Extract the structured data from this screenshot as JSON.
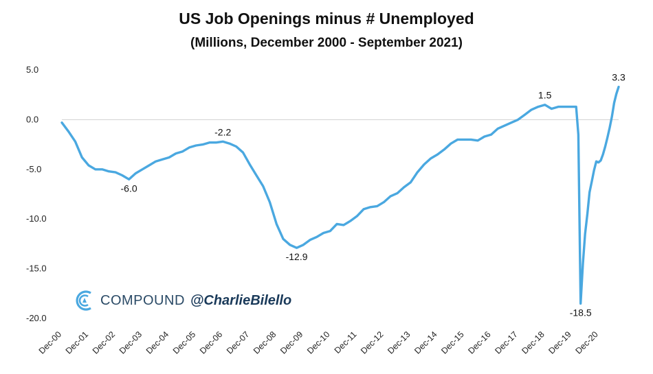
{
  "chart_data": {
    "type": "line",
    "title": "US Job Openings minus # Unemployed",
    "subtitle": "(Millions, December 2000 - September 2021)",
    "xlabel": "",
    "ylabel": "",
    "ylim": [
      -20,
      5
    ],
    "y_ticks": [
      "5.0",
      "0.0",
      "-5.0",
      "-10.0",
      "-15.0",
      "-20.0"
    ],
    "x_ticks": [
      "Dec-00",
      "Dec-01",
      "Dec-02",
      "Dec-03",
      "Dec-04",
      "Dec-05",
      "Dec-06",
      "Dec-07",
      "Dec-08",
      "Dec-09",
      "Dec-10",
      "Dec-11",
      "Dec-12",
      "Dec-13",
      "Dec-14",
      "Dec-15",
      "Dec-16",
      "Dec-17",
      "Dec-18",
      "Dec-19",
      "Dec-20"
    ],
    "grid": false,
    "line_color": "#4aa8e0",
    "series": [
      {
        "name": "",
        "points": [
          [
            "2000-12",
            -0.3
          ],
          [
            "2001-03",
            -1.2
          ],
          [
            "2001-06",
            -2.2
          ],
          [
            "2001-09",
            -3.8
          ],
          [
            "2001-12",
            -4.6
          ],
          [
            "2002-03",
            -5.0
          ],
          [
            "2002-06",
            -5.0
          ],
          [
            "2002-09",
            -5.2
          ],
          [
            "2002-12",
            -5.3
          ],
          [
            "2003-03",
            -5.6
          ],
          [
            "2003-06",
            -6.0
          ],
          [
            "2003-09",
            -5.4
          ],
          [
            "2003-12",
            -5.0
          ],
          [
            "2004-03",
            -4.6
          ],
          [
            "2004-06",
            -4.2
          ],
          [
            "2004-09",
            -4.0
          ],
          [
            "2004-12",
            -3.8
          ],
          [
            "2005-03",
            -3.4
          ],
          [
            "2005-06",
            -3.2
          ],
          [
            "2005-09",
            -2.8
          ],
          [
            "2005-12",
            -2.6
          ],
          [
            "2006-03",
            -2.5
          ],
          [
            "2006-06",
            -2.3
          ],
          [
            "2006-09",
            -2.3
          ],
          [
            "2006-12",
            -2.2
          ],
          [
            "2007-03",
            -2.4
          ],
          [
            "2007-06",
            -2.7
          ],
          [
            "2007-09",
            -3.3
          ],
          [
            "2007-12",
            -4.5
          ],
          [
            "2008-03",
            -5.6
          ],
          [
            "2008-06",
            -6.7
          ],
          [
            "2008-09",
            -8.3
          ],
          [
            "2008-12",
            -10.5
          ],
          [
            "2009-03",
            -12.0
          ],
          [
            "2009-06",
            -12.6
          ],
          [
            "2009-09",
            -12.9
          ],
          [
            "2009-12",
            -12.6
          ],
          [
            "2010-03",
            -12.1
          ],
          [
            "2010-06",
            -11.8
          ],
          [
            "2010-09",
            -11.4
          ],
          [
            "2010-12",
            -11.2
          ],
          [
            "2011-03",
            -10.5
          ],
          [
            "2011-06",
            -10.6
          ],
          [
            "2011-09",
            -10.2
          ],
          [
            "2011-12",
            -9.7
          ],
          [
            "2012-03",
            -9.0
          ],
          [
            "2012-06",
            -8.8
          ],
          [
            "2012-09",
            -8.7
          ],
          [
            "2012-12",
            -8.3
          ],
          [
            "2013-03",
            -7.7
          ],
          [
            "2013-06",
            -7.4
          ],
          [
            "2013-09",
            -6.8
          ],
          [
            "2013-12",
            -6.3
          ],
          [
            "2014-03",
            -5.3
          ],
          [
            "2014-06",
            -4.5
          ],
          [
            "2014-09",
            -3.9
          ],
          [
            "2014-12",
            -3.5
          ],
          [
            "2015-03",
            -3.0
          ],
          [
            "2015-06",
            -2.4
          ],
          [
            "2015-09",
            -2.0
          ],
          [
            "2015-12",
            -2.0
          ],
          [
            "2016-03",
            -2.0
          ],
          [
            "2016-06",
            -2.1
          ],
          [
            "2016-09",
            -1.7
          ],
          [
            "2016-12",
            -1.5
          ],
          [
            "2017-03",
            -0.9
          ],
          [
            "2017-06",
            -0.6
          ],
          [
            "2017-09",
            -0.3
          ],
          [
            "2017-12",
            0.0
          ],
          [
            "2018-03",
            0.5
          ],
          [
            "2018-06",
            1.0
          ],
          [
            "2018-09",
            1.3
          ],
          [
            "2018-12",
            1.5
          ],
          [
            "2019-03",
            1.1
          ],
          [
            "2019-06",
            1.3
          ],
          [
            "2019-09",
            1.3
          ],
          [
            "2019-12",
            1.3
          ],
          [
            "2020-01",
            1.3
          ],
          [
            "2020-02",
            1.3
          ],
          [
            "2020-03",
            -1.5
          ],
          [
            "2020-04",
            -18.5
          ],
          [
            "2020-05",
            -14.5
          ],
          [
            "2020-06",
            -11.5
          ],
          [
            "2020-07",
            -9.5
          ],
          [
            "2020-08",
            -7.3
          ],
          [
            "2020-09",
            -6.2
          ],
          [
            "2020-10",
            -5.1
          ],
          [
            "2020-11",
            -4.2
          ],
          [
            "2020-12",
            -4.3
          ],
          [
            "2021-01",
            -4.1
          ],
          [
            "2021-02",
            -3.5
          ],
          [
            "2021-03",
            -2.7
          ],
          [
            "2021-04",
            -1.8
          ],
          [
            "2021-05",
            -0.8
          ],
          [
            "2021-06",
            0.3
          ],
          [
            "2021-07",
            1.7
          ],
          [
            "2021-08",
            2.6
          ],
          [
            "2021-09",
            3.3
          ]
        ]
      }
    ],
    "annotations": [
      {
        "x": "2003-06",
        "y": -6.0,
        "text": "-6.0",
        "pos": "below"
      },
      {
        "x": "2006-12",
        "y": -2.2,
        "text": "-2.2",
        "pos": "above"
      },
      {
        "x": "2009-09",
        "y": -12.9,
        "text": "-12.9",
        "pos": "below"
      },
      {
        "x": "2018-12",
        "y": 1.5,
        "text": "1.5",
        "pos": "above"
      },
      {
        "x": "2020-04",
        "y": -18.5,
        "text": "-18.5",
        "pos": "below"
      },
      {
        "x": "2021-09",
        "y": 3.3,
        "text": "3.3",
        "pos": "above"
      }
    ]
  },
  "watermark": {
    "brand": "COMPOUND",
    "handle": "@CharlieBilello",
    "icon": "compound-logo-icon"
  }
}
